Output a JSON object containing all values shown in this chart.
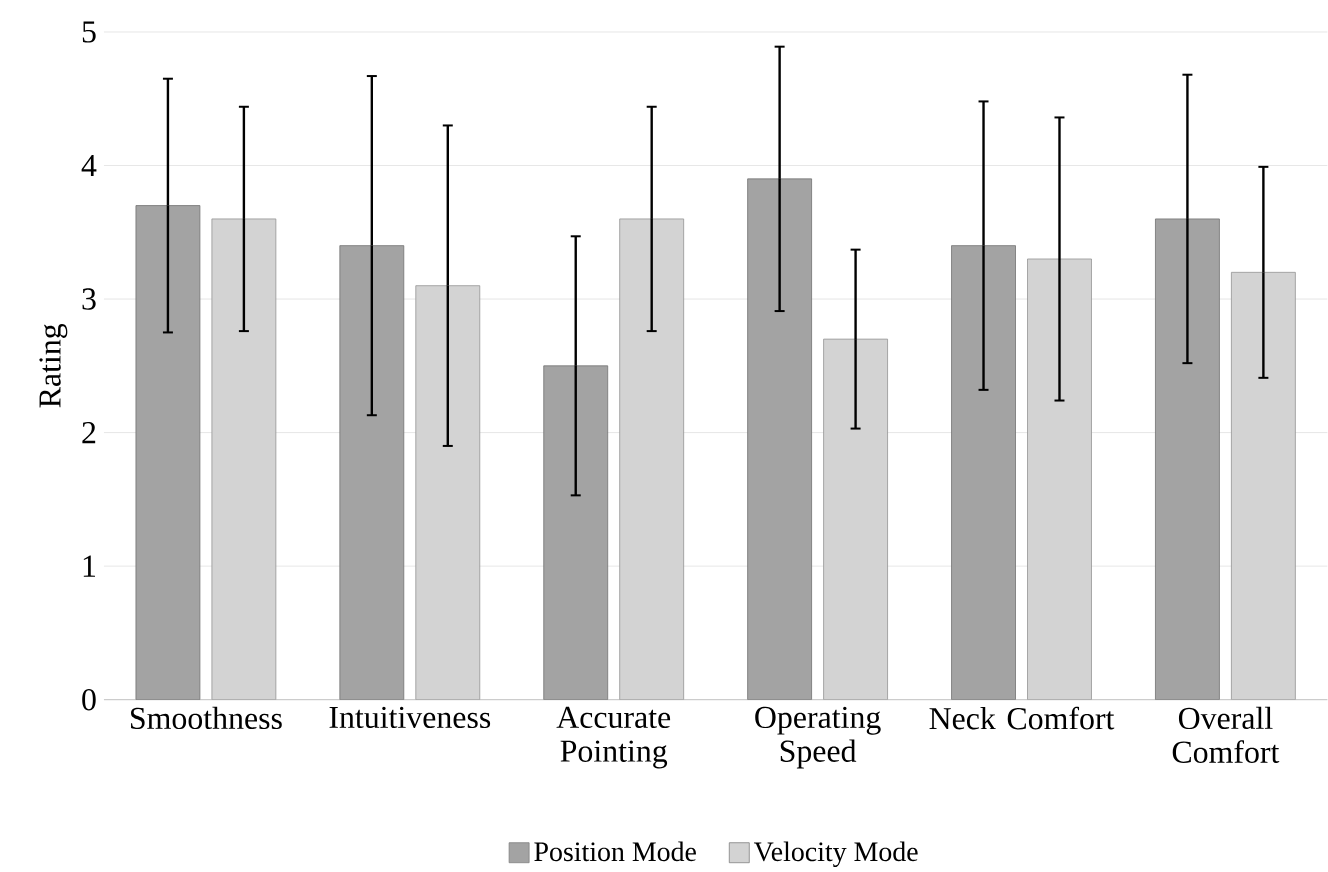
{
  "chart_data": {
    "type": "bar",
    "ylabel": "Rating",
    "categories": [
      "Smoothness",
      "Intuitiveness",
      "Accurate Pointing",
      "Operating Speed",
      "Neck Comfort",
      "Overall Comfort"
    ],
    "series": [
      {
        "name": "Position Mode",
        "color": "#a3a3a3",
        "values": [
          3.7,
          3.4,
          2.5,
          3.9,
          3.4,
          3.6
        ],
        "errors": [
          0.95,
          1.27,
          0.97,
          0.99,
          1.08,
          1.08
        ]
      },
      {
        "name": "Velocity Mode",
        "color": "#d3d3d3",
        "values": [
          3.6,
          3.1,
          3.6,
          2.7,
          3.3,
          3.2
        ],
        "errors": [
          0.84,
          1.2,
          0.84,
          0.67,
          1.06,
          0.79
        ]
      }
    ],
    "ylim": [
      0,
      5
    ],
    "yticks": [
      0,
      1,
      2,
      3,
      4,
      5
    ],
    "grid": "y",
    "legend": "bottom"
  }
}
